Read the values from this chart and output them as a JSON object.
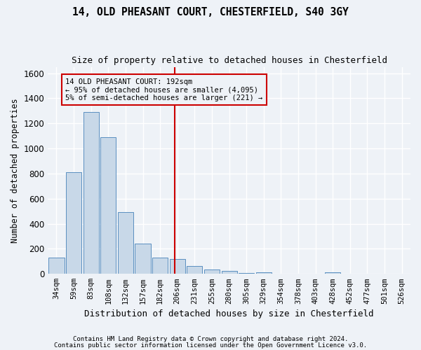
{
  "title_line1": "14, OLD PHEASANT COURT, CHESTERFIELD, S40 3GY",
  "title_line2": "Size of property relative to detached houses in Chesterfield",
  "xlabel": "Distribution of detached houses by size in Chesterfield",
  "ylabel": "Number of detached properties",
  "categories": [
    "34sqm",
    "59sqm",
    "83sqm",
    "108sqm",
    "132sqm",
    "157sqm",
    "182sqm",
    "206sqm",
    "231sqm",
    "255sqm",
    "280sqm",
    "305sqm",
    "329sqm",
    "354sqm",
    "378sqm",
    "403sqm",
    "428sqm",
    "452sqm",
    "477sqm",
    "501sqm",
    "526sqm"
  ],
  "values": [
    130,
    810,
    1290,
    1090,
    490,
    240,
    130,
    120,
    65,
    35,
    25,
    10,
    15,
    0,
    0,
    0,
    15,
    0,
    0,
    0,
    0
  ],
  "bar_color": "#c8d8e8",
  "bar_edge_color": "#5a8fc0",
  "vline_x": 6.85,
  "vline_color": "#cc0000",
  "annotation_text": "14 OLD PHEASANT COURT: 192sqm\n← 95% of detached houses are smaller (4,095)\n5% of semi-detached houses are larger (221) →",
  "annotation_box_color": "#cc0000",
  "ylim": [
    0,
    1650
  ],
  "yticks": [
    0,
    200,
    400,
    600,
    800,
    1000,
    1200,
    1400,
    1600
  ],
  "bg_color": "#eef2f7",
  "grid_color": "#ffffff",
  "footer_line1": "Contains HM Land Registry data © Crown copyright and database right 2024.",
  "footer_line2": "Contains public sector information licensed under the Open Government Licence v3.0."
}
